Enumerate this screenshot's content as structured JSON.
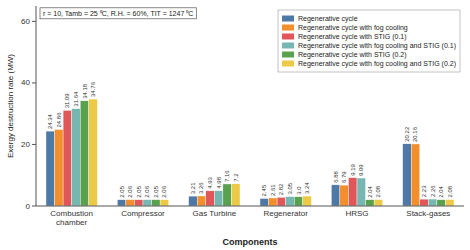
{
  "chart_data": {
    "type": "bar",
    "categories": [
      "Combustion\nchamber",
      "Compressor",
      "Gas Turbine",
      "Regenerator",
      "HRSG",
      "Stack-gases"
    ],
    "series": [
      {
        "name": "Regenerative cycle",
        "color": "#4e79a7",
        "values": [
          24.34,
          2.05,
          3.21,
          2.45,
          6.88,
          20.22
        ]
      },
      {
        "name": "Regenerative cycle with fog cooling",
        "color": "#f28e2b",
        "values": [
          24.86,
          2.06,
          3.26,
          2.61,
          6.79,
          20.16
        ]
      },
      {
        "name": "Regenerative cycle with STIG (0.1)",
        "color": "#e15759",
        "values": [
          31.09,
          2.05,
          4.93,
          2.82,
          9.19,
          2.23
        ]
      },
      {
        "name": "Regenerative cycle with fog cooling and STIG (0.1)",
        "color": "#76b7b2",
        "values": [
          31.64,
          2.06,
          4.98,
          3.05,
          9.09,
          2.26
        ]
      },
      {
        "name": "Regenerative cycle with STIG (0.2)",
        "color": "#59a14f",
        "values": [
          34.18,
          2.05,
          7.16,
          3.0,
          2.04,
          2.04
        ],
        "value_labels": [
          "34.18",
          "2.05",
          "7.16",
          "3.0",
          "2.04",
          "2.04"
        ]
      },
      {
        "name": "Regenerative cycle with fog cooling and STIG (0.2)",
        "color": "#edc948",
        "values": [
          34.76,
          2.06,
          7.2,
          3.24,
          2.08,
          2.08
        ]
      }
    ],
    "xlabel": "Components",
    "ylabel": "Exergy destruction rate (MW)",
    "ylim": [
      0,
      65
    ],
    "yticks": [
      0,
      20,
      40,
      60
    ],
    "grid": false,
    "legend": "upper right",
    "data_labels": true,
    "annotations": [
      "r = 10, Tamb = 25 ⁰C, R.H. = 60%, TIT = 1247 ⁰C"
    ]
  }
}
